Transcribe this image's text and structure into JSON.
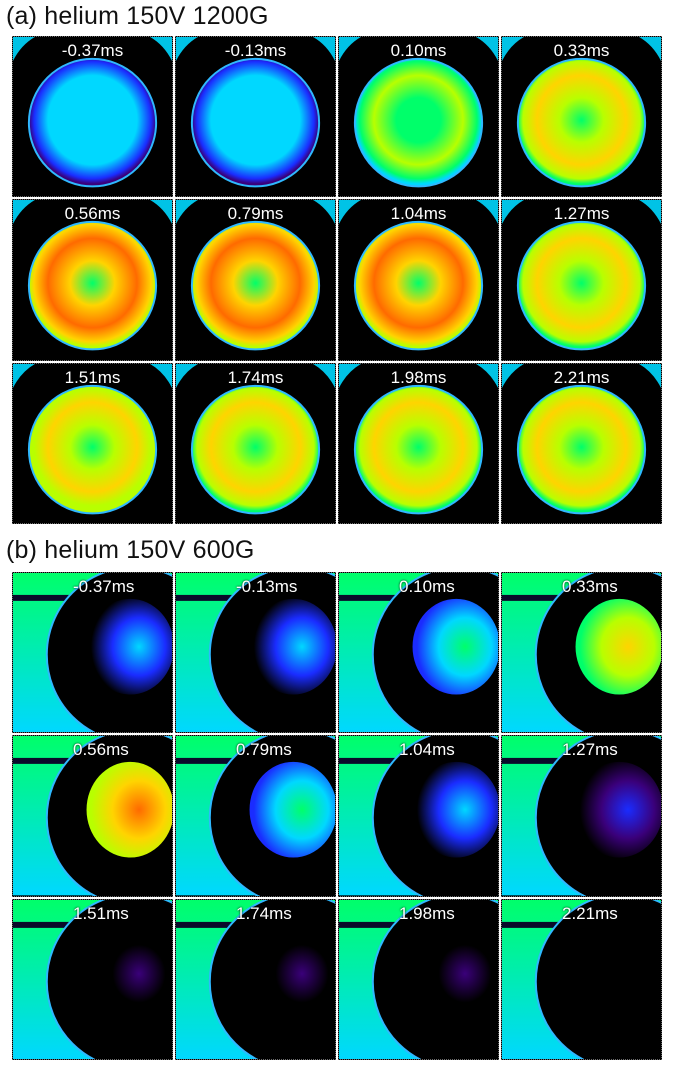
{
  "panel_a": {
    "title": "(a) helium 150V 1200G",
    "frames": [
      {
        "time": "-0.37ms",
        "style": "flat",
        "level": 0.34
      },
      {
        "time": "-0.13ms",
        "style": "flat",
        "level": 0.34
      },
      {
        "time": "0.10ms",
        "style": "ring",
        "level": 0.62
      },
      {
        "time": "0.33ms",
        "style": "ring",
        "level": 0.72
      },
      {
        "time": "0.56ms",
        "style": "ring",
        "level": 0.82
      },
      {
        "time": "0.79ms",
        "style": "ring",
        "level": 0.86
      },
      {
        "time": "1.04ms",
        "style": "ring",
        "level": 0.82
      },
      {
        "time": "1.27ms",
        "style": "ring",
        "level": 0.76
      },
      {
        "time": "1.51ms",
        "style": "ring",
        "level": 0.8
      },
      {
        "time": "1.74ms",
        "style": "ring",
        "level": 0.76
      },
      {
        "time": "1.98ms",
        "style": "ring",
        "level": 0.76
      },
      {
        "time": "2.21ms",
        "style": "ring",
        "level": 0.74
      }
    ]
  },
  "panel_b": {
    "title": "(b) helium 150V 600G",
    "frames": [
      {
        "time": "-0.37ms",
        "level": 0.34
      },
      {
        "time": "-0.13ms",
        "level": 0.34
      },
      {
        "time": "0.10ms",
        "level": 0.55
      },
      {
        "time": "0.33ms",
        "level": 0.8
      },
      {
        "time": "0.56ms",
        "level": 0.88
      },
      {
        "time": "0.79ms",
        "level": 0.5
      },
      {
        "time": "1.04ms",
        "level": 0.36
      },
      {
        "time": "1.27ms",
        "level": 0.24
      },
      {
        "time": "1.51ms",
        "level": 0.14
      },
      {
        "time": "1.74ms",
        "level": 0.1
      },
      {
        "time": "1.98ms",
        "level": 0.07
      },
      {
        "time": "2.21ms",
        "level": 0.05
      }
    ]
  },
  "colors": {
    "background": "#000000",
    "rim": "#2fb8ff",
    "colormap": [
      "#000000",
      "#3a007a",
      "#1a2cff",
      "#00d8ff",
      "#00ff6a",
      "#b8ff00",
      "#ffd400",
      "#ff6a00",
      "#e00000"
    ]
  }
}
